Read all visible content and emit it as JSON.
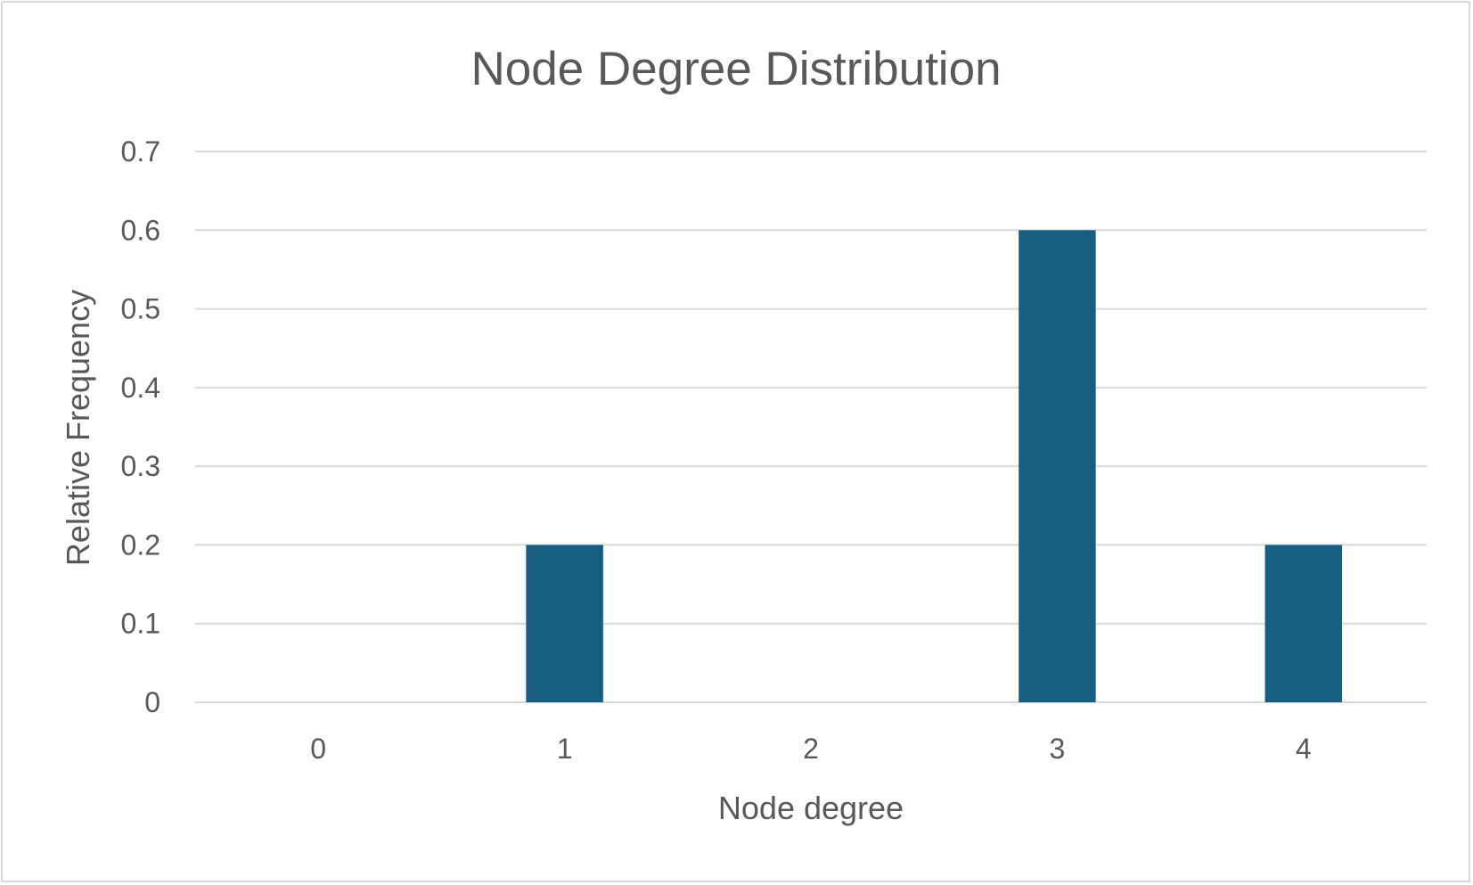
{
  "chart_data": {
    "type": "bar",
    "title": "Node Degree Distribution",
    "xlabel": "Node degree",
    "ylabel": "Relative Frequency",
    "categories": [
      "0",
      "1",
      "2",
      "3",
      "4"
    ],
    "values": [
      0,
      0.2,
      0,
      0.6,
      0.2
    ],
    "ylim": [
      0,
      0.7
    ],
    "yticks": [
      "0",
      "0.1",
      "0.2",
      "0.3",
      "0.4",
      "0.5",
      "0.6",
      "0.7"
    ],
    "grid": true,
    "legend": "none",
    "colors": {
      "bar": "#175f82",
      "grid": "#d9d9d9",
      "text": "#595959",
      "border": "#d9d9d9"
    }
  }
}
